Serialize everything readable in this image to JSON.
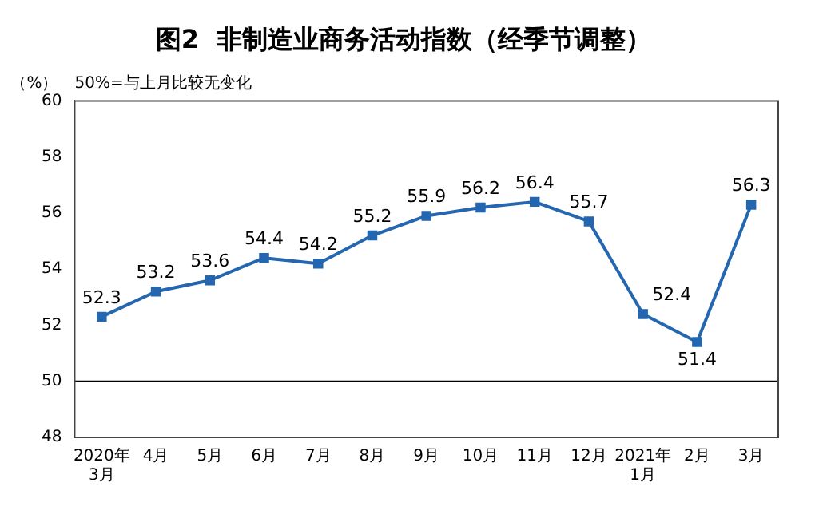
{
  "chart_data": {
    "type": "line",
    "title": "图2  非制造业商务活动指数（经季节调整）",
    "ylabel": "（%）",
    "annotations": [
      "50%=与上月比较无变化"
    ],
    "categories": [
      "2020年\n3月",
      "4月",
      "5月",
      "6月",
      "7月",
      "8月",
      "9月",
      "10月",
      "11月",
      "12月",
      "2021年\n1月",
      "2月",
      "3月"
    ],
    "series": [
      {
        "color": "#2566b0",
        "values": [
          52.3,
          53.2,
          53.6,
          54.4,
          54.2,
          55.2,
          55.9,
          56.2,
          56.4,
          55.7,
          52.4,
          51.4,
          56.3
        ]
      }
    ],
    "ylim": [
      48,
      60
    ],
    "yticks": [
      48,
      50,
      52,
      54,
      56,
      58,
      60
    ],
    "ref_lines": [
      {
        "axis": "y",
        "value": 50,
        "color": "#000000"
      }
    ],
    "data_labels": true,
    "grid": false,
    "legend": false,
    "marker": "square",
    "line_style": "solid"
  }
}
